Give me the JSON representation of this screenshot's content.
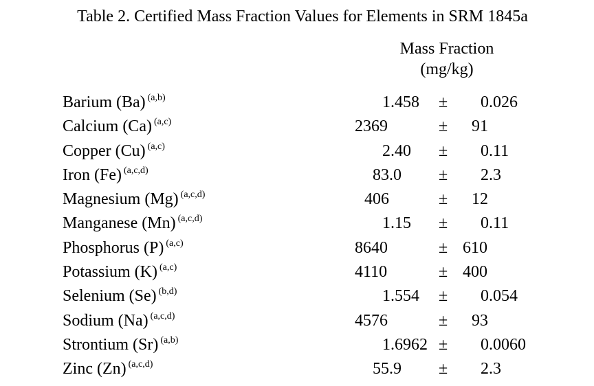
{
  "table": {
    "title": "Table 2.  Certified Mass Fraction Values for Elements in SRM 1845a",
    "column_header": {
      "line1": "Mass Fraction",
      "line2": "(mg/kg)"
    },
    "pm_symbol": "±",
    "rows": [
      {
        "element": "Barium (Ba)",
        "footnotes": "(a,b)",
        "value": "1.458",
        "uncertainty": "0.026"
      },
      {
        "element": "Calcium (Ca)",
        "footnotes": "(a,c)",
        "value": "2369",
        "uncertainty": "91"
      },
      {
        "element": "Copper (Cu)",
        "footnotes": "(a,c)",
        "value": "2.40",
        "uncertainty": "0.11"
      },
      {
        "element": "Iron (Fe)",
        "footnotes": "(a,c,d)",
        "value": "83.0",
        "uncertainty": "2.3"
      },
      {
        "element": "Magnesium (Mg)",
        "footnotes": "(a,c,d)",
        "value": "406",
        "uncertainty": "12"
      },
      {
        "element": "Manganese (Mn)",
        "footnotes": "(a,c,d)",
        "value": "1.15",
        "uncertainty": "0.11"
      },
      {
        "element": "Phosphorus (P)",
        "footnotes": "(a,c)",
        "value": "8640",
        "uncertainty": "610"
      },
      {
        "element": "Potassium (K)",
        "footnotes": "(a,c)",
        "value": "4110",
        "uncertainty": "400"
      },
      {
        "element": "Selenium (Se)",
        "footnotes": "(b,d)",
        "value": "1.554",
        "uncertainty": "0.054"
      },
      {
        "element": "Sodium (Na)",
        "footnotes": "(a,c,d)",
        "value": "4576",
        "uncertainty": "93"
      },
      {
        "element": "Strontium (Sr)",
        "footnotes": "(a,b)",
        "value": "1.6962",
        "uncertainty": "0.0060"
      },
      {
        "element": "Zinc (Zn)",
        "footnotes": "(a,c,d)",
        "value": "55.9",
        "uncertainty": "2.3"
      }
    ]
  }
}
